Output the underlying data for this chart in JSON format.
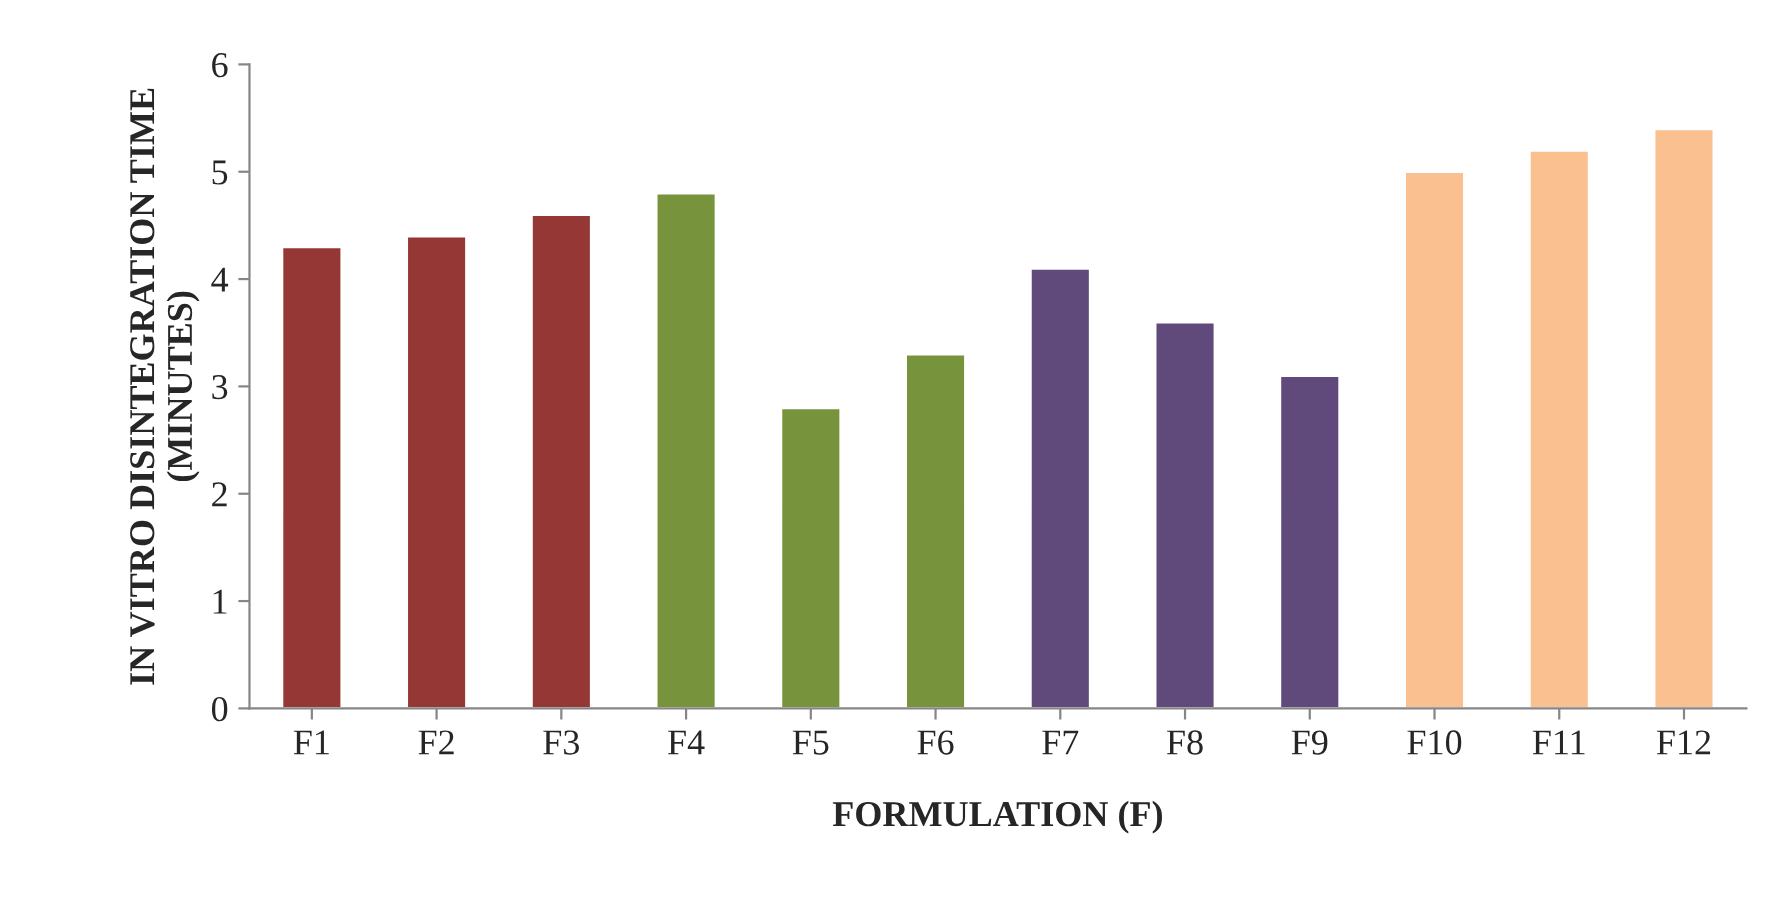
{
  "chart_data": {
    "type": "bar",
    "xlabel": "FORMULATION (F)",
    "ylabel": "IN VITRO DISINTEGRATION TIME\n(MINUTES)",
    "categories": [
      "F1",
      "F2",
      "F3",
      "F4",
      "F5",
      "F6",
      "F7",
      "F8",
      "F9",
      "F10",
      "F11",
      "F12"
    ],
    "values": [
      4.3,
      4.4,
      4.6,
      4.8,
      2.8,
      3.3,
      4.1,
      3.6,
      3.1,
      5.0,
      5.2,
      5.4
    ],
    "colors": [
      "#953735",
      "#953735",
      "#953735",
      "#77933c",
      "#77933c",
      "#77933c",
      "#604a7b",
      "#604a7b",
      "#604a7b",
      "#fac090",
      "#fac090",
      "#fac090"
    ],
    "ylim": [
      0,
      6
    ],
    "yticks": [
      0,
      1,
      2,
      3,
      4,
      5,
      6
    ],
    "grid": false,
    "legend": false
  }
}
